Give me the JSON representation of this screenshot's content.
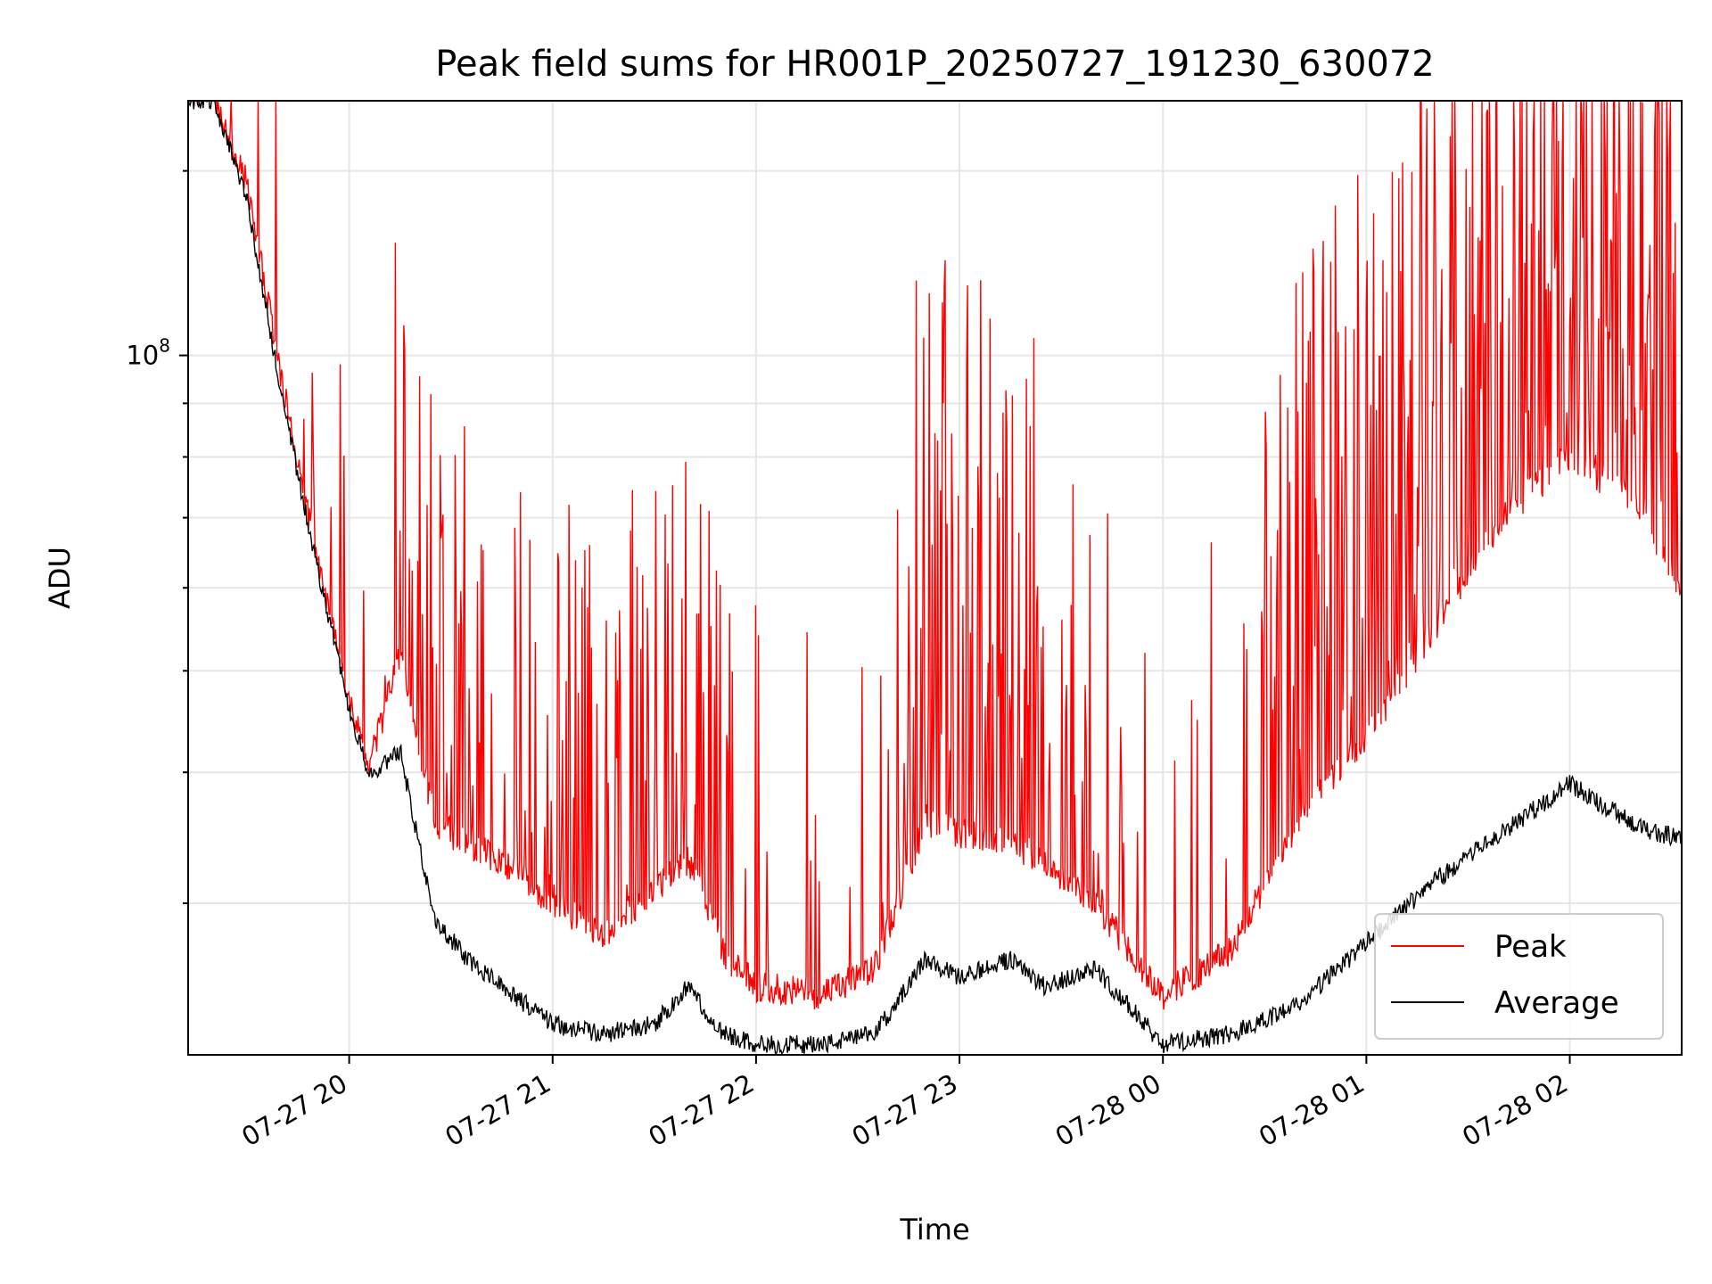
{
  "chart_data": {
    "type": "line",
    "title": "Peak field sums for HR001P_20250727_191230_630072",
    "xlabel": "Time",
    "ylabel": "ADU",
    "yscale": "log",
    "ylim": [
      21500000.0,
      175000000.0
    ],
    "xlim": [
      "07-27 19:12:30",
      "07-28 02:33"
    ],
    "x_ticks": [
      "07-27 20",
      "07-27 21",
      "07-27 22",
      "07-27 23",
      "07-28 00",
      "07-28 01",
      "07-28 02"
    ],
    "y_ticks": [
      {
        "label_base": "10",
        "label_exp": "8",
        "value": 100000000.0
      }
    ],
    "grid": true,
    "legend_position": "lower-right",
    "series": [
      {
        "name": "Peak",
        "color": "#ff0000",
        "x": [
          "07-27 19:12:30",
          "07-27 19:20",
          "07-27 19:30",
          "07-27 19:40",
          "07-27 19:50",
          "07-27 20:00",
          "07-27 20:06",
          "07-27 20:15",
          "07-27 20:25",
          "07-27 20:35",
          "07-27 20:45",
          "07-27 21:00",
          "07-27 21:15",
          "07-27 21:30",
          "07-27 21:40",
          "07-27 21:50",
          "07-27 22:00",
          "07-27 22:20",
          "07-27 22:35",
          "07-27 22:50",
          "07-27 23:00",
          "07-27 23:15",
          "07-27 23:25",
          "07-27 23:40",
          "07-28 00:00",
          "07-28 00:20",
          "07-28 00:40",
          "07-28 01:00",
          "07-28 01:20",
          "07-28 01:40",
          "07-28 02:00",
          "07-28 02:20",
          "07-28 02:33"
        ],
        "y": [
          175000000.0,
          175000000.0,
          145000000.0,
          95000000.0,
          65000000.0,
          46500000.0,
          40500000.0,
          52000000.0,
          36000000.0,
          34000000.0,
          33000000.0,
          30000000.0,
          28000000.0,
          31000000.0,
          33000000.0,
          27000000.0,
          25000000.0,
          24500000.0,
          26000000.0,
          36000000.0,
          35000000.0,
          34000000.0,
          33000000.0,
          30000000.0,
          24500000.0,
          27000000.0,
          36000000.0,
          43000000.0,
          55000000.0,
          70000000.0,
          80000000.0,
          72000000.0,
          60000000.0
        ]
      },
      {
        "name": "Average",
        "color": "#000000",
        "x": [
          "07-27 19:12:30",
          "07-27 19:20",
          "07-27 19:30",
          "07-27 19:40",
          "07-27 19:50",
          "07-27 20:00",
          "07-27 20:06",
          "07-27 20:15",
          "07-27 20:25",
          "07-27 20:35",
          "07-27 20:45",
          "07-27 21:00",
          "07-27 21:15",
          "07-27 21:30",
          "07-27 21:40",
          "07-27 21:50",
          "07-27 22:00",
          "07-27 22:20",
          "07-27 22:35",
          "07-27 22:50",
          "07-27 23:00",
          "07-27 23:15",
          "07-27 23:25",
          "07-27 23:40",
          "07-28 00:00",
          "07-28 00:20",
          "07-28 00:40",
          "07-28 01:00",
          "07-28 01:20",
          "07-28 01:40",
          "07-28 02:00",
          "07-28 02:20",
          "07-28 02:33"
        ],
        "y": [
          175000000.0,
          175000000.0,
          140000000.0,
          92000000.0,
          64000000.0,
          46000000.0,
          39500000.0,
          42000000.0,
          29000000.0,
          26500000.0,
          25000000.0,
          23000000.0,
          22500000.0,
          23000000.0,
          25000000.0,
          22500000.0,
          22000000.0,
          22000000.0,
          22500000.0,
          26500000.0,
          25500000.0,
          26500000.0,
          25000000.0,
          26000000.0,
          22000000.0,
          22500000.0,
          24000000.0,
          27500000.0,
          31500000.0,
          35000000.0,
          39000000.0,
          35500000.0,
          34500000.0
        ]
      }
    ],
    "annotation_mark": "spiky peak excursions above the base peak line"
  }
}
